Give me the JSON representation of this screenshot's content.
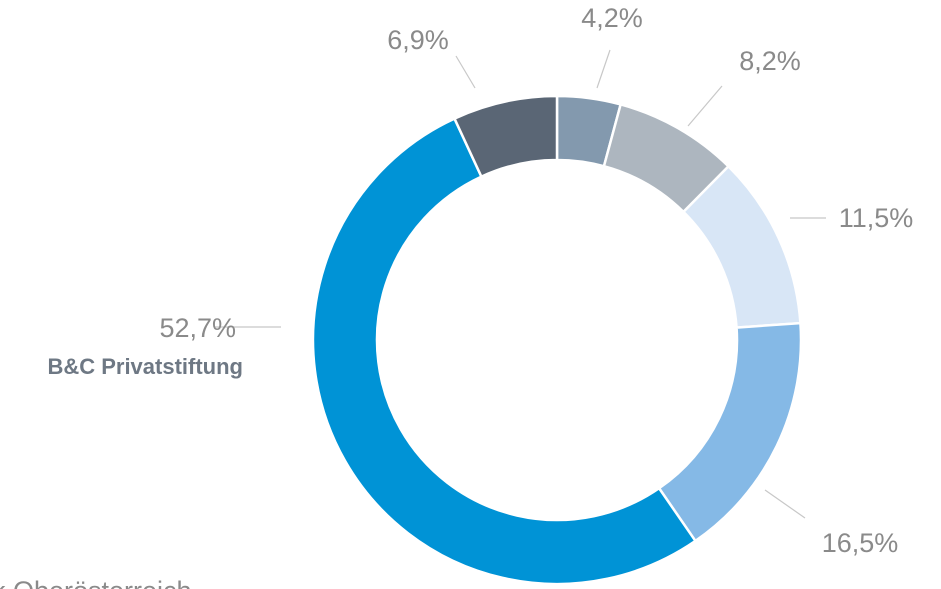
{
  "chart_data": {
    "type": "donut",
    "categories": [
      null,
      null,
      null,
      null,
      "B&C Privatstiftung",
      null
    ],
    "values": [
      4.2,
      8.2,
      11.5,
      16.5,
      52.7,
      6.9
    ],
    "value_labels": [
      "4,2%",
      "8,2%",
      "11,5%",
      "16,5%",
      "52,7%",
      "6,9%"
    ],
    "colors": [
      "#8399ae",
      "#adb6bf",
      "#d8e6f6",
      "#85b9e6",
      "#0093d6",
      "#5a6675"
    ],
    "annotations": [
      "k Oberösterreich"
    ]
  }
}
